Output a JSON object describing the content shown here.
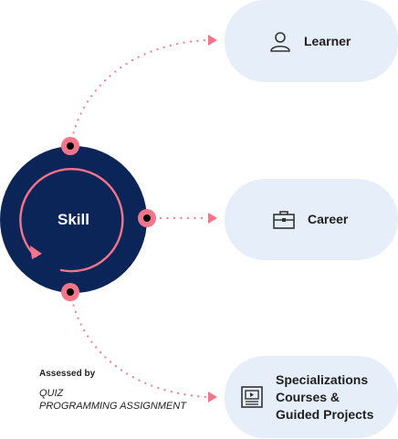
{
  "center": {
    "label": "Skill"
  },
  "nodes": {
    "learner": {
      "label": "Learner",
      "icon": "person-icon"
    },
    "career": {
      "label": "Career",
      "icon": "briefcase-icon"
    },
    "outcome": {
      "icon": "video-lesson-icon",
      "lines": [
        "Specializations",
        "Courses &",
        "Guided Projects"
      ]
    }
  },
  "assessment": {
    "title": "Assessed by",
    "items": [
      "QUIZ",
      "PROGRAMMING ASSIGNMENT"
    ]
  },
  "colors": {
    "skill_circle": "#0b2559",
    "accent": "#f47489",
    "pill_background": "#e6eef9"
  }
}
